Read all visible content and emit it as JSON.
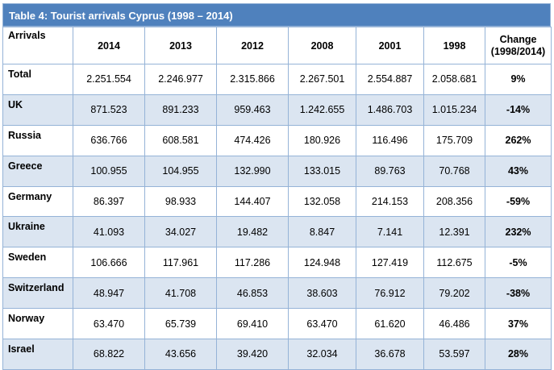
{
  "title": "Table 4: Tourist arrivals Cyprus (1998 – 2014)",
  "headers": [
    "Arrivals",
    "2014",
    "2013",
    "2012",
    "2008",
    "2001",
    "1998",
    "Change\n(1998/2014)"
  ],
  "header_change_line1": "Change",
  "header_change_line2": "(1998/2014)",
  "rows": [
    {
      "country": "Total",
      "v2014": "2.251.554",
      "v2013": "2.246.977",
      "v2012": "2.315.866",
      "v2008": "2.267.501",
      "v2001": "2.554.887",
      "v1998": "2.058.681",
      "change": "9%"
    },
    {
      "country": "UK",
      "v2014": "871.523",
      "v2013": "891.233",
      "v2012": "959.463",
      "v2008": "1.242.655",
      "v2001": "1.486.703",
      "v1998": "1.015.234",
      "change": "-14%"
    },
    {
      "country": "Russia",
      "v2014": "636.766",
      "v2013": "608.581",
      "v2012": "474.426",
      "v2008": "180.926",
      "v2001": "116.496",
      "v1998": "175.709",
      "change": "262%"
    },
    {
      "country": "Greece",
      "v2014": "100.955",
      "v2013": "104.955",
      "v2012": "132.990",
      "v2008": "133.015",
      "v2001": "89.763",
      "v1998": "70.768",
      "change": "43%"
    },
    {
      "country": "Germany",
      "v2014": "86.397",
      "v2013": "98.933",
      "v2012": "144.407",
      "v2008": "132.058",
      "v2001": "214.153",
      "v1998": "208.356",
      "change": "-59%"
    },
    {
      "country": "Ukraine",
      "v2014": "41.093",
      "v2013": "34.027",
      "v2012": "19.482",
      "v2008": "8.847",
      "v2001": "7.141",
      "v1998": "12.391",
      "change": "232%"
    },
    {
      "country": "Sweden",
      "v2014": "106.666",
      "v2013": "117.961",
      "v2012": "117.286",
      "v2008": "124.948",
      "v2001": "127.419",
      "v1998": "112.675",
      "change": "-5%"
    },
    {
      "country": "Switzerland",
      "v2014": "48.947",
      "v2013": "41.708",
      "v2012": "46.853",
      "v2008": "38.603",
      "v2001": "76.912",
      "v1998": "79.202",
      "change": "-38%"
    },
    {
      "country": "Norway",
      "v2014": "63.470",
      "v2013": "65.739",
      "v2012": "69.410",
      "v2008": "63.470",
      "v2001": "61.620",
      "v1998": "46.486",
      "change": "37%"
    },
    {
      "country": "Israel",
      "v2014": "68.822",
      "v2013": "43.656",
      "v2012": "39.420",
      "v2008": "32.034",
      "v2001": "36.678",
      "v1998": "53.597",
      "change": "28%"
    }
  ],
  "colors": {
    "title_bg": "#4f81bd",
    "shade_row": "#dbe5f1",
    "border": "#95b3d7"
  }
}
